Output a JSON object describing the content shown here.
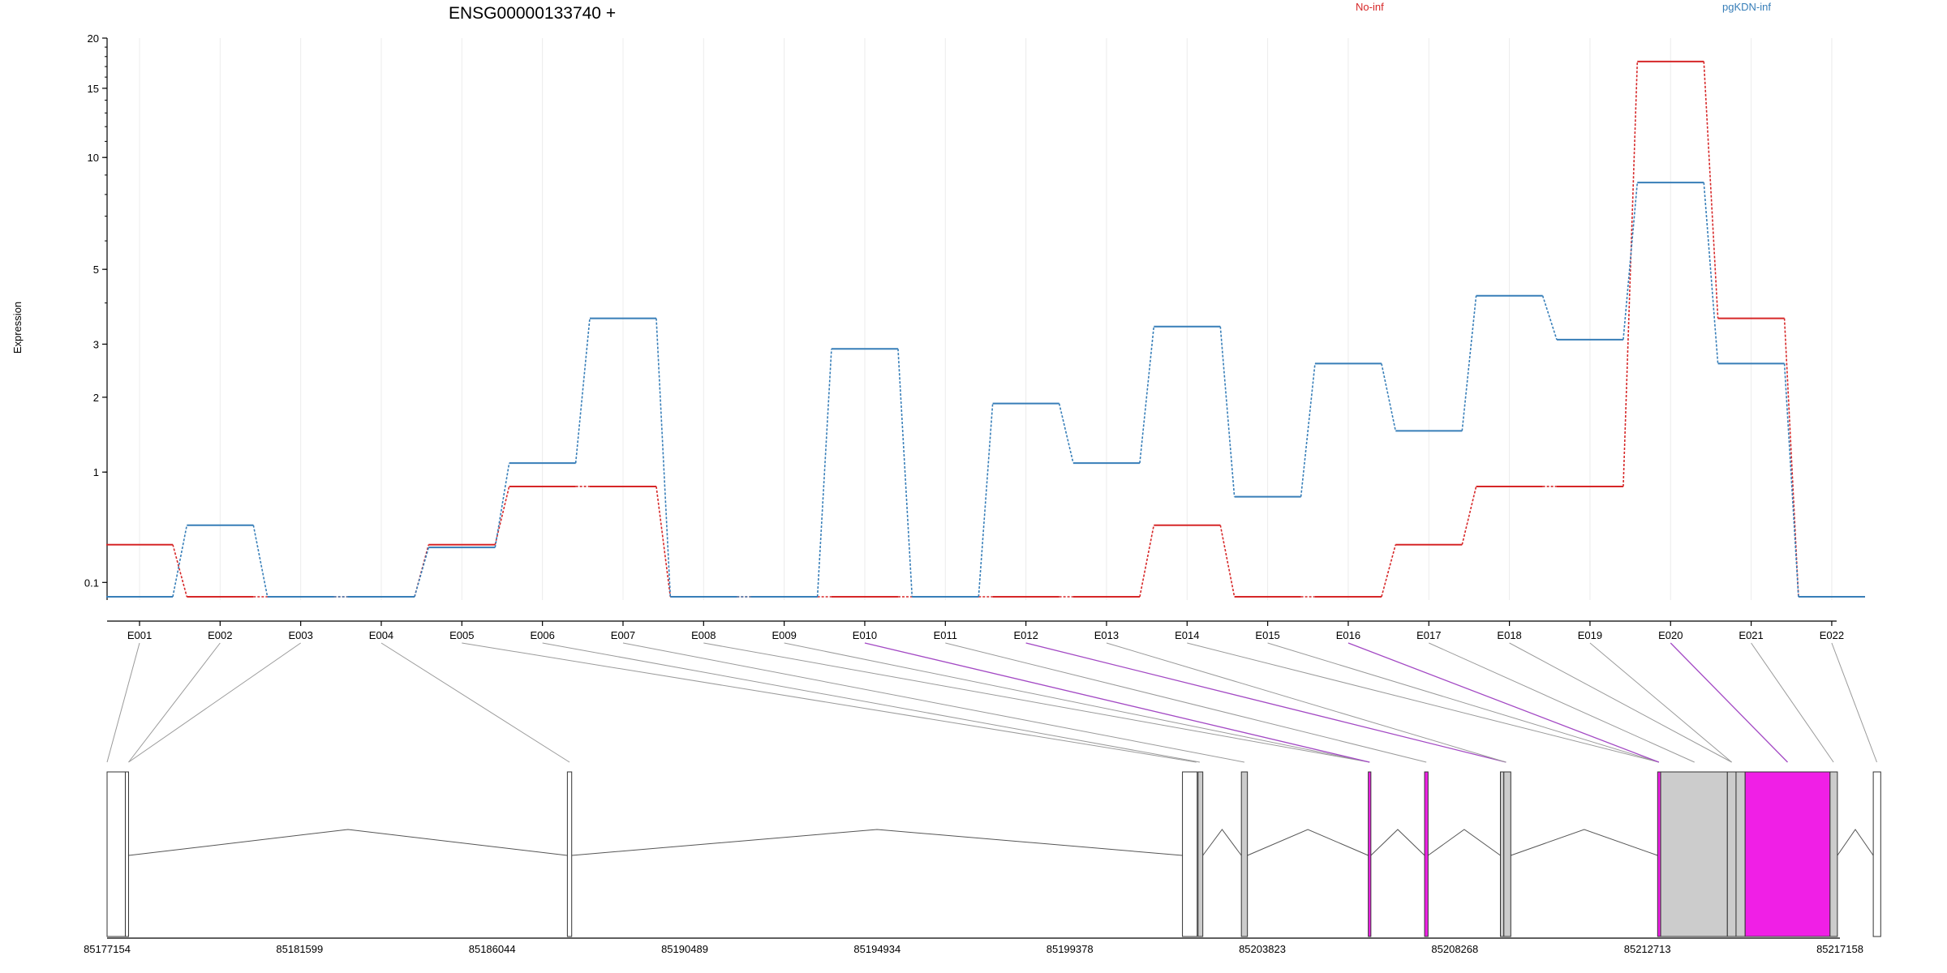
{
  "title": "ENSG00000133740 +",
  "legend": [
    {
      "label": "No-inf",
      "color": "#d62728"
    },
    {
      "label": "pgKDN-inf",
      "color": "#377eb8"
    }
  ],
  "chart_data": {
    "type": "line",
    "ylabel": "Expression",
    "yscale": "log1p",
    "ylim": [
      0,
      20
    ],
    "yticks": [
      "0.1",
      "1",
      "2",
      "3",
      "5",
      "10",
      "15",
      "20"
    ],
    "categories": [
      "E001",
      "E002",
      "E003",
      "E004",
      "E005",
      "E006",
      "E007",
      "E008",
      "E009",
      "E010",
      "E011",
      "E012",
      "E013",
      "E014",
      "E015",
      "E016",
      "E017",
      "E018",
      "E019",
      "E020",
      "E021",
      "E022"
    ],
    "series": [
      {
        "name": "No-inf",
        "color": "#d62728",
        "values": [
          0.35,
          0.0,
          0.0,
          0.0,
          0.35,
          0.85,
          0.85,
          0.0,
          0.0,
          0.0,
          0.0,
          0.0,
          0.0,
          0.5,
          0.0,
          0.0,
          0.35,
          0.85,
          0.85,
          17.5,
          3.6,
          0.0
        ]
      },
      {
        "name": "pgKDN-inf",
        "color": "#377eb8",
        "values": [
          0.0,
          0.5,
          0.0,
          0.0,
          0.33,
          1.1,
          3.6,
          0.0,
          0.0,
          2.9,
          0.0,
          1.9,
          1.1,
          3.4,
          0.75,
          2.6,
          1.5,
          4.2,
          3.1,
          8.6,
          2.6,
          0.0
        ]
      }
    ],
    "exon_highlight": [
      false,
      false,
      false,
      false,
      false,
      false,
      false,
      false,
      false,
      true,
      false,
      true,
      false,
      false,
      false,
      true,
      false,
      false,
      false,
      true,
      false,
      false
    ],
    "genomic_ticks": [
      "85177154",
      "85181599",
      "85186044",
      "85190489",
      "85194934",
      "85199378",
      "85203823",
      "85208268",
      "85212713",
      "85217158"
    ],
    "genome_range": [
      85177154,
      85217158
    ],
    "exons": [
      {
        "start": 85177154,
        "end": 85177575,
        "fill": "white"
      },
      {
        "start": 85177575,
        "end": 85177650,
        "fill": "white"
      },
      {
        "start": 85187780,
        "end": 85187880,
        "fill": "white"
      },
      {
        "start": 85201980,
        "end": 85202320,
        "fill": "white"
      },
      {
        "start": 85202340,
        "end": 85202450,
        "fill": "lightgray"
      },
      {
        "start": 85203340,
        "end": 85203480,
        "fill": "lightgray"
      },
      {
        "start": 85206270,
        "end": 85206330,
        "fill": "magenta"
      },
      {
        "start": 85207570,
        "end": 85207650,
        "fill": "magenta"
      },
      {
        "start": 85209320,
        "end": 85209400,
        "fill": "lightgray"
      },
      {
        "start": 85209400,
        "end": 85209560,
        "fill": "lightgray"
      },
      {
        "start": 85212950,
        "end": 85213020,
        "fill": "magenta"
      },
      {
        "start": 85213020,
        "end": 85214560,
        "fill": "lightgray"
      },
      {
        "start": 85214560,
        "end": 85214760,
        "fill": "lightgray"
      },
      {
        "start": 85214760,
        "end": 85214970,
        "fill": "lightgray"
      },
      {
        "start": 85214970,
        "end": 85216930,
        "fill": "magenta"
      },
      {
        "start": 85216930,
        "end": 85217100,
        "fill": "lightgray"
      },
      {
        "start": 85217928,
        "end": 85218100,
        "fill": "white"
      }
    ],
    "exon_targets": [
      85177154,
      85177650,
      85177650,
      85187830,
      85202300,
      85202380,
      85203410,
      85206300,
      85206300,
      85206300,
      85207610,
      85209450,
      85209450,
      85212980,
      85212980,
      85212980,
      85213800,
      85214660,
      85214660,
      85215950,
      85217010,
      85218010
    ]
  }
}
